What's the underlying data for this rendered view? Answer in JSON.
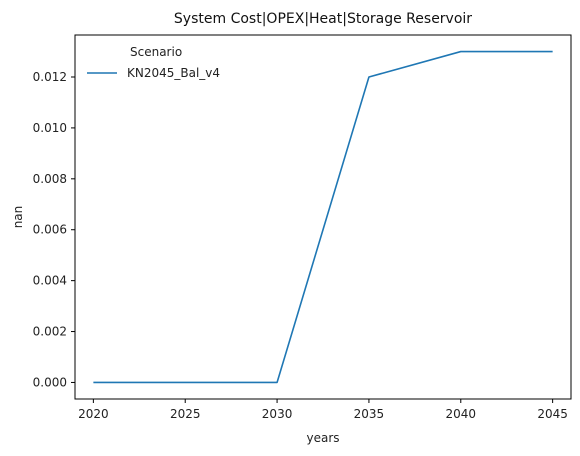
{
  "chart_data": {
    "type": "line",
    "title": "System Cost|OPEX|Heat|Storage Reservoir",
    "xlabel": "years",
    "ylabel": "nan",
    "x": [
      2020,
      2025,
      2030,
      2035,
      2040,
      2045
    ],
    "xticks": [
      2020,
      2025,
      2030,
      2035,
      2040,
      2045
    ],
    "xtick_labels": [
      "2020",
      "2025",
      "2030",
      "2035",
      "2040",
      "2045"
    ],
    "yticks": [
      0.0,
      0.002,
      0.004,
      0.006,
      0.008,
      0.01,
      0.012
    ],
    "ytick_labels": [
      "0.000",
      "0.002",
      "0.004",
      "0.006",
      "0.008",
      "0.010",
      "0.012"
    ],
    "xlim": [
      2019,
      2046
    ],
    "ylim": [
      -0.00065,
      0.01365
    ],
    "grid": false,
    "legend": {
      "title": "Scenario",
      "placement": "top-left"
    },
    "series": [
      {
        "name": "KN2045_Bal_v4",
        "color": "#1f77b4",
        "values": [
          0.0,
          0.0,
          0.0,
          0.012,
          0.013,
          0.013
        ]
      }
    ]
  }
}
